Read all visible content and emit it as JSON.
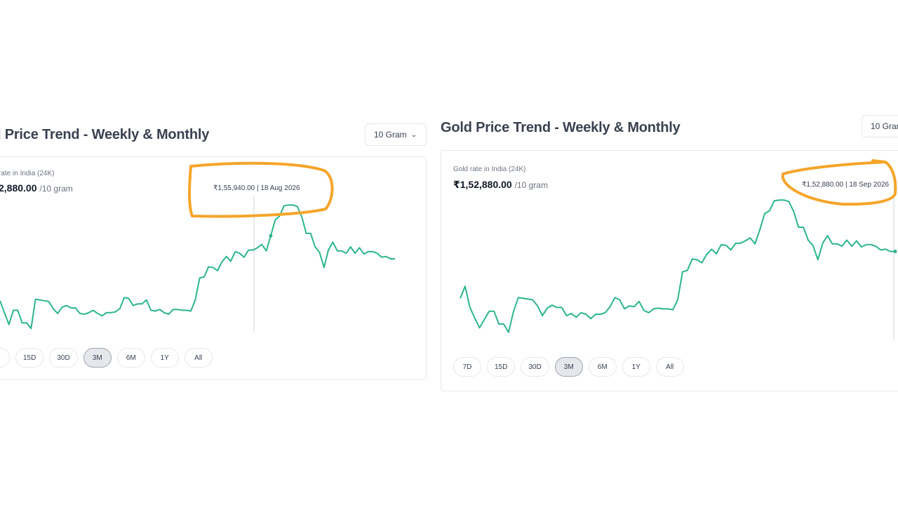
{
  "left": {
    "title": "l Price Trend - Weekly & Monthly",
    "unit_select": "10 Gram",
    "rate_label": "rate in India (24K)",
    "rate_value": "2,880.00",
    "rate_unit": "/10 gram",
    "tooltip": "₹1,55,940.00 | 18 Aug 2026",
    "ranges": [
      "D",
      "15D",
      "30D",
      "3M",
      "6M",
      "1Y",
      "All"
    ],
    "active_range": "3M"
  },
  "right": {
    "title": "Gold Price Trend - Weekly & Monthly",
    "unit_select": "10 Gran",
    "rate_label": "Gold rate in India (24K)",
    "rate_value": "₹1,52,880.00",
    "rate_unit": "/10 gram",
    "tooltip": "₹1,52,880.00 | 18 Sep 2026",
    "ranges": [
      "7D",
      "15D",
      "30D",
      "3M",
      "6M",
      "1Y",
      "All"
    ],
    "active_range": "3M"
  },
  "colors": {
    "line": "#2bb58e",
    "highlight": "#f5a52a",
    "title": "#3a4150"
  },
  "chart_data": [
    {
      "type": "line",
      "title": "",
      "series": [
        {
          "values": [
            140.0,
            138.5,
            137.0,
            138.8,
            138.8,
            137.2,
            137.2,
            136.5,
            140.2,
            140.1,
            140.0,
            139.9,
            139.0,
            138.4,
            139.2,
            139.4,
            139.1,
            139.1,
            138.4,
            138.3,
            138.5,
            138.8,
            138.4,
            138.1,
            138.5,
            138.5,
            138.6,
            139.0,
            140.4,
            140.3,
            139.4,
            139.6,
            139.6,
            140.1,
            138.8,
            138.7,
            138.9,
            138.5,
            138.3,
            138.9,
            138.9,
            138.8,
            138.8,
            138.7,
            140.1,
            142.9,
            143.0,
            144.3,
            144.2,
            143.8,
            144.9,
            145.6,
            145.0,
            146.2,
            146.0,
            145.5,
            146.4,
            146.4,
            146.7,
            147.1,
            146.3,
            148.2,
            150.2,
            150.7,
            152.0,
            152.1,
            152.1,
            151.9,
            150.6,
            148.5,
            148.5,
            146.8,
            146.1,
            144.2,
            146.4,
            147.4,
            146.3,
            146.3,
            146.0,
            146.8,
            146.0,
            146.7,
            145.9,
            146.2,
            146.2,
            146.0,
            145.5,
            145.6,
            145.3,
            145.3
          ]
        }
      ]
    },
    {
      "type": "line",
      "title": "",
      "series": [
        {
          "values": [
            141.7,
            143.3,
            140.5,
            139.1,
            137.8,
            138.9,
            140.0,
            140.0,
            138.3,
            138.3,
            137.2,
            139.9,
            141.8,
            141.7,
            141.6,
            141.5,
            140.7,
            139.4,
            140.4,
            140.8,
            140.5,
            140.5,
            139.4,
            139.7,
            139.2,
            139.8,
            139.6,
            139.0,
            139.6,
            139.6,
            139.8,
            140.6,
            141.8,
            141.5,
            140.3,
            140.7,
            140.6,
            141.3,
            140.1,
            139.8,
            140.3,
            140.4,
            140.3,
            140.3,
            140.2,
            141.5,
            145.2,
            145.4,
            146.9,
            146.8,
            146.4,
            147.5,
            148.2,
            147.6,
            148.8,
            148.7,
            148.1,
            149.0,
            149.0,
            149.3,
            149.7,
            148.9,
            150.8,
            152.9,
            153.3,
            154.6,
            154.7,
            154.7,
            154.5,
            153.2,
            151.1,
            151.1,
            149.4,
            148.7,
            146.8,
            149.0,
            150.0,
            148.9,
            148.9,
            148.6,
            149.4,
            148.6,
            149.3,
            148.5,
            148.8,
            148.8,
            148.6,
            148.1,
            148.2,
            147.9,
            147.9
          ]
        }
      ]
    }
  ]
}
